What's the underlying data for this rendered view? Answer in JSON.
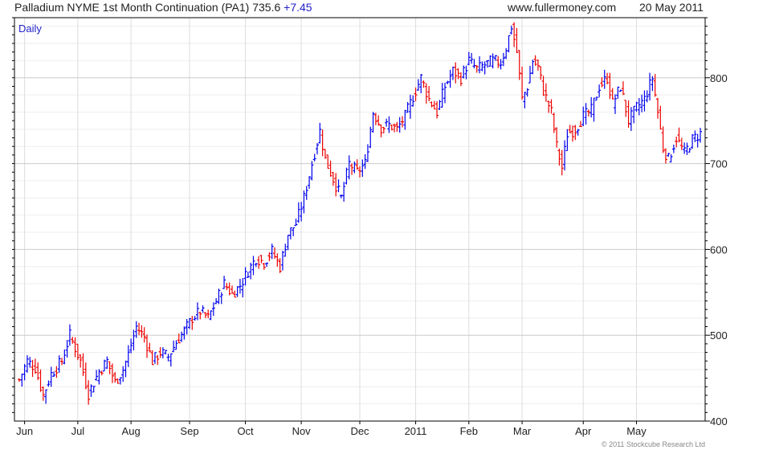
{
  "header": {
    "title": "Palladium NYME 1st Month Continuation (PA1)",
    "last": "735.6",
    "change": "+7.45",
    "site": "www.fullermoney.com",
    "date": "20 May 2011"
  },
  "footer": {
    "copyright": "© 2011 Stockcube Research Ltd"
  },
  "colors": {
    "up": "#0000ee",
    "down": "#ee0000",
    "grid": "#dddddd",
    "minor_grid": "#eeeeee",
    "axis": "#000000"
  },
  "chart_data": {
    "type": "candlestick",
    "period_label": "Daily",
    "y_axis_position": "right",
    "ylim": [
      400,
      870
    ],
    "yticks": [
      400,
      500,
      600,
      700,
      800
    ],
    "x_ticks": [
      "Jun",
      "Jul",
      "Aug",
      "Sep",
      "Oct",
      "Nov",
      "Dec",
      "2011",
      "Feb",
      "Mar",
      "Apr",
      "May"
    ],
    "x_tick_index": [
      2,
      22,
      42,
      64,
      85,
      106,
      128,
      149,
      169,
      189,
      212,
      232
    ],
    "close_path": [
      [
        0,
        448
      ],
      [
        3,
        470
      ],
      [
        6,
        462
      ],
      [
        9,
        430
      ],
      [
        12,
        455
      ],
      [
        16,
        470
      ],
      [
        19,
        500
      ],
      [
        23,
        470
      ],
      [
        26,
        432
      ],
      [
        30,
        458
      ],
      [
        33,
        470
      ],
      [
        36,
        445
      ],
      [
        39,
        460
      ],
      [
        41,
        478
      ],
      [
        44,
        510
      ],
      [
        47,
        498
      ],
      [
        50,
        470
      ],
      [
        53,
        480
      ],
      [
        56,
        475
      ],
      [
        59,
        492
      ],
      [
        62,
        505
      ],
      [
        65,
        520
      ],
      [
        68,
        528
      ],
      [
        71,
        520
      ],
      [
        74,
        540
      ],
      [
        77,
        560
      ],
      [
        80,
        548
      ],
      [
        83,
        558
      ],
      [
        86,
        575
      ],
      [
        89,
        590
      ],
      [
        92,
        585
      ],
      [
        95,
        598
      ],
      [
        98,
        580
      ],
      [
        101,
        618
      ],
      [
        104,
        630
      ],
      [
        107,
        660
      ],
      [
        110,
        700
      ],
      [
        113,
        738
      ],
      [
        115,
        705
      ],
      [
        118,
        682
      ],
      [
        121,
        660
      ],
      [
        124,
        700
      ],
      [
        127,
        690
      ],
      [
        130,
        700
      ],
      [
        133,
        760
      ],
      [
        136,
        742
      ],
      [
        139,
        745
      ],
      [
        142,
        740
      ],
      [
        145,
        755
      ],
      [
        148,
        778
      ],
      [
        151,
        800
      ],
      [
        154,
        775
      ],
      [
        157,
        760
      ],
      [
        160,
        790
      ],
      [
        163,
        808
      ],
      [
        166,
        800
      ],
      [
        169,
        820
      ],
      [
        172,
        810
      ],
      [
        175,
        815
      ],
      [
        178,
        820
      ],
      [
        181,
        818
      ],
      [
        183,
        835
      ],
      [
        185,
        860
      ],
      [
        187,
        830
      ],
      [
        189,
        775
      ],
      [
        191,
        790
      ],
      [
        193,
        820
      ],
      [
        195,
        812
      ],
      [
        197,
        785
      ],
      [
        200,
        760
      ],
      [
        202,
        720
      ],
      [
        204,
        695
      ],
      [
        206,
        735
      ],
      [
        209,
        740
      ],
      [
        212,
        755
      ],
      [
        215,
        762
      ],
      [
        218,
        790
      ],
      [
        221,
        800
      ],
      [
        223,
        770
      ],
      [
        226,
        790
      ],
      [
        229,
        750
      ],
      [
        232,
        765
      ],
      [
        235,
        775
      ],
      [
        238,
        800
      ],
      [
        240,
        760
      ],
      [
        242,
        718
      ],
      [
        244,
        705
      ],
      [
        247,
        730
      ],
      [
        250,
        712
      ],
      [
        253,
        728
      ],
      [
        256,
        735
      ]
    ],
    "n_days": 257
  }
}
